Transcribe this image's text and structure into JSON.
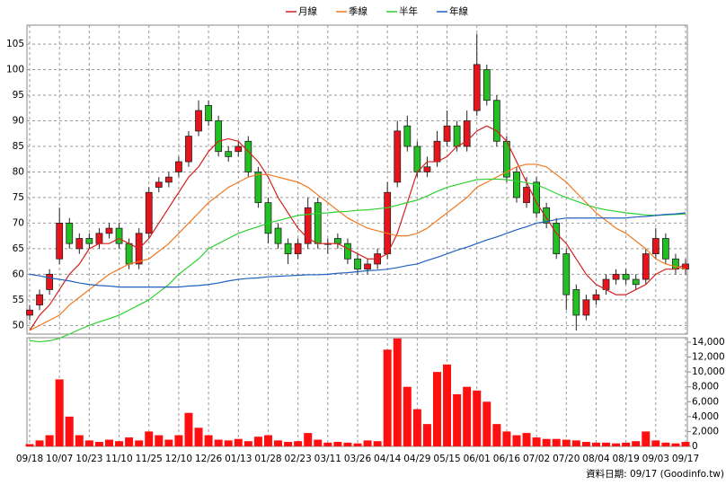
{
  "chart_data": {
    "type": "candlestick",
    "categories": [
      "09/18",
      null,
      null,
      "10/07",
      null,
      null,
      "10/23",
      null,
      null,
      "11/10",
      null,
      null,
      "11/25",
      null,
      null,
      "12/10",
      null,
      null,
      "12/26",
      null,
      null,
      "01/13",
      null,
      null,
      "01/28",
      null,
      null,
      "02/23",
      null,
      null,
      "03/11",
      null,
      null,
      "03/26",
      null,
      null,
      "04/14",
      null,
      null,
      "04/29",
      null,
      null,
      "05/15",
      null,
      null,
      "06/01",
      null,
      null,
      "06/16",
      null,
      null,
      "07/02",
      null,
      null,
      "07/20",
      null,
      null,
      "08/04",
      null,
      null,
      "08/19",
      null,
      null,
      "09/03",
      null,
      null,
      "09/17"
    ],
    "open": [
      52,
      54,
      57,
      63,
      70,
      65,
      67,
      66,
      68,
      69,
      66,
      62,
      68,
      77,
      78,
      80,
      82,
      88,
      93,
      90,
      84,
      84,
      86,
      80,
      74,
      69,
      66,
      64,
      66,
      74,
      66,
      67,
      66,
      63,
      61,
      62,
      64,
      78,
      89,
      85,
      80,
      82,
      86,
      89,
      85,
      92,
      100,
      94,
      86,
      80,
      74,
      78,
      73,
      70,
      64,
      57,
      52,
      55,
      57,
      59,
      60,
      59,
      59,
      64,
      67,
      63,
      61
    ],
    "high": [
      54,
      57,
      61,
      73,
      71,
      68,
      68,
      69,
      70,
      70,
      67,
      69,
      77,
      79,
      80,
      83,
      88,
      94,
      94,
      91,
      85,
      86,
      87,
      81,
      75,
      70,
      67,
      67,
      75,
      75,
      67,
      68,
      67,
      64,
      63,
      65,
      78,
      90,
      91,
      86,
      83,
      88,
      92,
      90,
      92,
      107,
      101,
      95,
      87,
      81,
      79,
      79,
      74,
      71,
      65,
      58,
      56,
      57,
      60,
      61,
      61,
      60,
      65,
      69,
      68,
      64,
      63
    ],
    "low": [
      51,
      53,
      56,
      62,
      65,
      64,
      65,
      65,
      67,
      65,
      61,
      61,
      67,
      76,
      77,
      79,
      81,
      87,
      89,
      83,
      82,
      83,
      79,
      73,
      66,
      65,
      62,
      63,
      65,
      65,
      64,
      65,
      62,
      60,
      60,
      61,
      63,
      77,
      84,
      79,
      79,
      81,
      85,
      84,
      84,
      91,
      93,
      85,
      78,
      74,
      73,
      71,
      69,
      63,
      53,
      49,
      51,
      54,
      56,
      58,
      58,
      57,
      58,
      63,
      62,
      60,
      60
    ],
    "close": [
      53,
      56,
      60,
      70,
      66,
      67,
      66,
      68,
      69,
      66,
      62,
      68,
      76,
      78,
      79,
      82,
      87,
      92,
      90,
      84,
      83,
      85,
      80,
      74,
      68,
      66,
      64,
      66,
      73,
      66,
      66,
      66,
      63,
      61,
      62,
      64,
      76,
      88,
      85,
      80,
      81,
      86,
      89,
      85,
      90,
      101,
      94,
      86,
      79,
      75,
      77,
      72,
      70,
      64,
      56,
      52,
      55,
      56,
      59,
      60,
      59,
      58,
      64,
      67,
      63,
      61,
      62
    ],
    "up_color": "#e8141c",
    "down_color": "#22c022",
    "ylim": [
      48.3,
      108.7
    ],
    "yticks": [
      50,
      55,
      60,
      65,
      70,
      75,
      80,
      85,
      90,
      95,
      100,
      105
    ],
    "grid": true,
    "series": [
      {
        "name": "月線",
        "color": "#d42020",
        "values": [
          49,
          52,
          54,
          57,
          60,
          62,
          65,
          66,
          66,
          67,
          66,
          65,
          67,
          70,
          73,
          76,
          79,
          81,
          84,
          86,
          86.5,
          86,
          84,
          82,
          79,
          75,
          72,
          69,
          67,
          66,
          66,
          66,
          65,
          64,
          63,
          63,
          64,
          68,
          74,
          80,
          82,
          82,
          83,
          85,
          86,
          88,
          89,
          88,
          86,
          82,
          78,
          74,
          71,
          68,
          66,
          63,
          60,
          58,
          57,
          56,
          56,
          57,
          58,
          60,
          61,
          61,
          62
        ]
      },
      {
        "name": "季線",
        "color": "#f07820",
        "values": [
          49,
          50,
          51,
          52,
          54,
          55.5,
          57,
          58.5,
          60,
          61,
          62,
          62.5,
          63,
          64.5,
          66,
          68,
          70,
          72,
          74,
          75.5,
          77,
          78,
          79,
          79.5,
          79.5,
          79,
          78.5,
          78,
          77,
          75.5,
          74,
          72.5,
          71,
          70,
          69,
          68.5,
          68,
          67.5,
          67.5,
          68,
          69,
          70.5,
          72,
          73.5,
          75,
          77,
          78,
          79,
          80,
          81,
          81.5,
          81.5,
          81,
          79.5,
          78,
          76,
          74,
          72,
          70.5,
          69,
          68,
          66.5,
          65,
          63,
          62,
          61.5,
          61
        ]
      },
      {
        "name": "半年",
        "color": "#30d030",
        "values": [
          47,
          46.8,
          47,
          47.5,
          48.3,
          49.2,
          50,
          50.7,
          51.3,
          52,
          53,
          54,
          55,
          56.5,
          58,
          60,
          61.5,
          63,
          65,
          66,
          67,
          68,
          68.7,
          69.3,
          70,
          70.5,
          71,
          71.5,
          71.7,
          71.9,
          72,
          72.2,
          72.3,
          72.5,
          72.6,
          72.8,
          73,
          73.5,
          74,
          74.5,
          75.3,
          76.2,
          77,
          77.5,
          78,
          78.5,
          78.6,
          78.6,
          78.5,
          78.2,
          77.9,
          77.5,
          76.7,
          75.8,
          75,
          74.3,
          73.6,
          73,
          72.6,
          72.3,
          72,
          71.8,
          71.6,
          71.5,
          71.6,
          71.7,
          71.8
        ]
      },
      {
        "name": "年線",
        "color": "#2060c0",
        "values": [
          60,
          59.7,
          59.3,
          59,
          58.7,
          58.3,
          58,
          57.8,
          57.7,
          57.5,
          57.5,
          57.5,
          57.5,
          57.5,
          57.5,
          57.5,
          57.7,
          57.8,
          58,
          58.3,
          58.7,
          59,
          59.2,
          59.3,
          59.5,
          59.6,
          59.7,
          59.8,
          59.9,
          59.9,
          60,
          60.2,
          60.3,
          60.5,
          60.7,
          60.8,
          61,
          61.3,
          61.7,
          62,
          62.7,
          63.3,
          64,
          64.7,
          65.3,
          66,
          66.7,
          67.3,
          68,
          68.7,
          69.3,
          70,
          70.3,
          70.7,
          71,
          71,
          71,
          71,
          71,
          71,
          71,
          71.2,
          71.3,
          71.5,
          71.7,
          71.8,
          72
        ]
      }
    ],
    "volume": {
      "color": "#ff1010",
      "values": [
        300,
        800,
        1500,
        9000,
        4000,
        1500,
        800,
        600,
        900,
        700,
        1200,
        800,
        2000,
        1500,
        900,
        1500,
        4500,
        2500,
        1500,
        900,
        800,
        1000,
        700,
        1300,
        1500,
        800,
        600,
        700,
        1800,
        900,
        500,
        600,
        500,
        400,
        800,
        700,
        13000,
        14500,
        8000,
        5000,
        3000,
        10000,
        11000,
        7000,
        8000,
        7500,
        6000,
        3000,
        2000,
        1500,
        1800,
        1200,
        1000,
        1000,
        900,
        800,
        600,
        500,
        500,
        400,
        500,
        700,
        2000,
        800,
        500,
        400,
        600
      ],
      "ylim": [
        0,
        14600
      ],
      "yticks": [
        0,
        {
          "value": 2000,
          "label": "2,000"
        },
        {
          "value": 4000,
          "label": "4,000"
        },
        {
          "value": 6000,
          "label": "6,000"
        },
        {
          "value": 8000,
          "label": "8,000"
        },
        {
          "value": 10000,
          "label": "10,000"
        },
        {
          "value": 12000,
          "label": "12,000"
        },
        {
          "value": 14000,
          "label": "14,000"
        }
      ]
    },
    "footer": "資料日期: 09/17 (Goodinfo.tw)"
  }
}
